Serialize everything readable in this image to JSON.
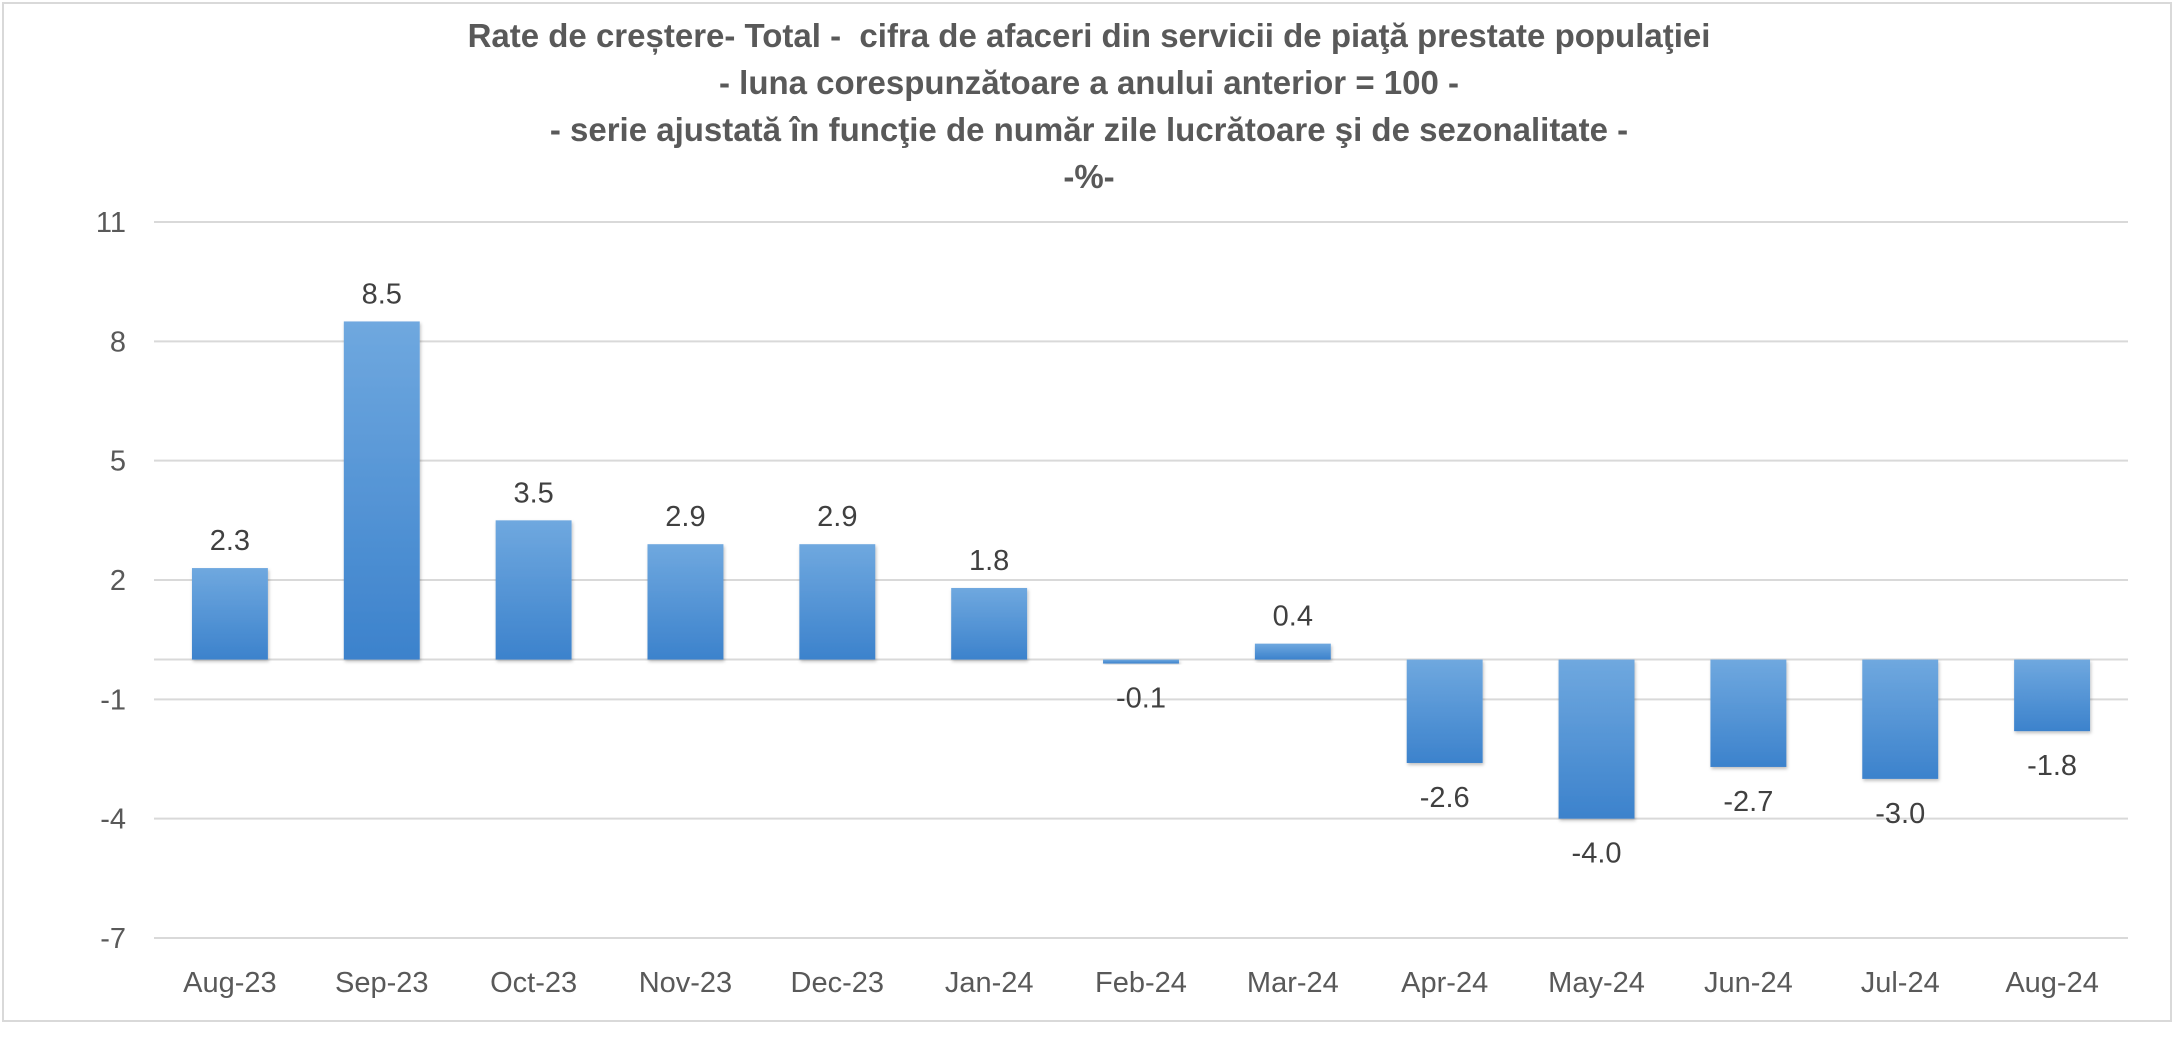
{
  "chart_data": {
    "type": "bar",
    "title_lines": [
      "Rate de creștere- Total -  cifra de afaceri din servicii de piaţă prestate populaţiei",
      "- luna corespunzătoare a anului anterior = 100 -",
      "- serie ajustată în funcţie de număr zile lucrătoare şi de sezonalitate -",
      "-%-"
    ],
    "categories": [
      "Aug-23",
      "Sep-23",
      "Oct-23",
      "Nov-23",
      "Dec-23",
      "Jan-24",
      "Feb-24",
      "Mar-24",
      "Apr-24",
      "May-24",
      "Jun-24",
      "Jul-24",
      "Aug-24"
    ],
    "values": [
      2.3,
      8.5,
      3.5,
      2.9,
      2.9,
      1.8,
      -0.1,
      0.4,
      -2.6,
      -4.0,
      -2.7,
      -3.0,
      -1.8
    ],
    "value_labels": [
      "2.3",
      "8.5",
      "3.5",
      "2.9",
      "2.9",
      "1.8",
      "-0.1",
      "0.4",
      "-2.6",
      "-4.0",
      "-2.7",
      "-3.0",
      "-1.8"
    ],
    "y_ticks": [
      11,
      8,
      5,
      2,
      -1,
      -4,
      -7
    ],
    "ylim": [
      -7,
      11
    ],
    "xlabel": "",
    "ylabel": "",
    "grid": true,
    "legend": "none",
    "colors": {
      "bar_top": "#6fa8df",
      "bar_bottom": "#3c82cc",
      "grid": "#d9d9d9",
      "text": "#595959"
    }
  }
}
